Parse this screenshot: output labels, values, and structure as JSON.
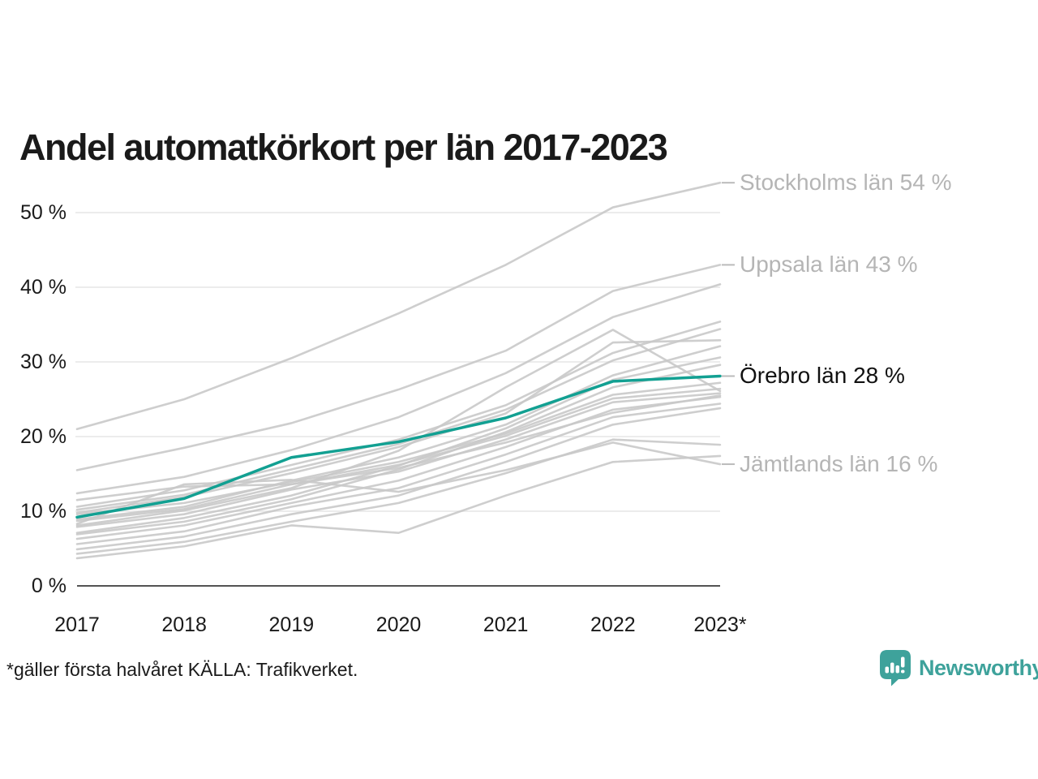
{
  "title": "Andel automatkörkort per län 2017-2023",
  "footnote": "*gäller första halvåret KÄLLA: Trafikverket.",
  "logo": {
    "text": "Newsworthy",
    "color": "#3ea29b"
  },
  "colors": {
    "highlight_line": "#12a092",
    "gray_line": "#c9c9c9",
    "gridline": "#ececec",
    "axis_line": "#1a1a1a",
    "end_label_gray": "#b5b5b5",
    "end_label_dark": "#111111"
  },
  "chart_data": {
    "type": "line",
    "x_tick_labels": [
      "2017",
      "2018",
      "2019",
      "2020",
      "2021",
      "2022",
      "2023*"
    ],
    "y_ticks": [
      0,
      10,
      20,
      30,
      40,
      50
    ],
    "y_tick_labels": [
      "0 %",
      "10 %",
      "20 %",
      "30 %",
      "40 %",
      "50 %"
    ],
    "ylim": [
      0,
      57.5
    ],
    "grid": "horizontal-only",
    "legend_position": "right-end-labels",
    "series": [
      {
        "name": "Stockholms län",
        "end_label": "Stockholms län 54 %",
        "emphasis": false,
        "values": [
          21,
          25,
          30.5,
          36.5,
          43,
          50.7,
          54
        ]
      },
      {
        "name": "Uppsala län",
        "end_label": "Uppsala län 43 %",
        "emphasis": false,
        "values": [
          15.5,
          18.5,
          21.8,
          26.3,
          31.5,
          39.5,
          43
        ]
      },
      {
        "name": "Örebro län",
        "end_label": "Örebro län 28 %",
        "emphasis": true,
        "values": [
          9.2,
          11.7,
          17.2,
          19.3,
          22.5,
          27.4,
          28.1
        ]
      },
      {
        "name": "Jämtlands län",
        "end_label": "Jämtlands län 16 %",
        "emphasis": false,
        "values": [
          8.3,
          13.6,
          14.2,
          12.6,
          15.5,
          19.2,
          16.3
        ]
      },
      {
        "name": "",
        "values": [
          12.4,
          14.6,
          18.2,
          22.6,
          28.5,
          36,
          40.4
        ]
      },
      {
        "name": "",
        "values": [
          10.6,
          12.8,
          16.2,
          19.6,
          24.2,
          31.2,
          35.4
        ]
      },
      {
        "name": "",
        "values": [
          10.2,
          12.2,
          15.6,
          19,
          23.6,
          30.2,
          34.4
        ]
      },
      {
        "name": "",
        "values": [
          9.8,
          11.9,
          15.1,
          18.6,
          23.1,
          32.6,
          32.9
        ]
      },
      {
        "name": "",
        "values": [
          8.9,
          10.6,
          14.1,
          17.2,
          21.6,
          28.2,
          32.1
        ]
      },
      {
        "name": "",
        "values": [
          7.1,
          9.1,
          12.1,
          16.1,
          21.1,
          27.6,
          30.6
        ]
      },
      {
        "name": "",
        "values": [
          6.9,
          8.6,
          11.6,
          15.6,
          20.6,
          26.6,
          29.6
        ]
      },
      {
        "name": "",
        "values": [
          8.1,
          10.1,
          13.1,
          18.1,
          26.6,
          34.3,
          26.1
        ]
      },
      {
        "name": "",
        "values": [
          9.6,
          11.1,
          13.9,
          16.6,
          20.4,
          25.6,
          27.2
        ]
      },
      {
        "name": "",
        "values": [
          8.7,
          10.3,
          13.6,
          16.2,
          20.1,
          25.1,
          26.4
        ]
      },
      {
        "name": "",
        "values": [
          7.9,
          9.6,
          12.9,
          15.3,
          19.6,
          24.6,
          25.8
        ]
      },
      {
        "name": "",
        "values": [
          11.5,
          13.3,
          13.6,
          15.8,
          19.2,
          23.2,
          25.5
        ]
      },
      {
        "name": "",
        "values": [
          6.3,
          8.1,
          11.1,
          14.1,
          18.6,
          23.6,
          25.3
        ]
      },
      {
        "name": "",
        "values": [
          5.6,
          7.3,
          10.6,
          13.1,
          17.6,
          22.6,
          24.4
        ]
      },
      {
        "name": "",
        "values": [
          4.9,
          6.6,
          9.6,
          12.1,
          16.6,
          21.6,
          23.8
        ]
      },
      {
        "name": "",
        "values": [
          4.3,
          5.9,
          8.6,
          11.1,
          15.1,
          19.6,
          18.9
        ]
      },
      {
        "name": "",
        "values": [
          3.7,
          5.3,
          8.1,
          7.1,
          12.1,
          16.6,
          17.4
        ]
      }
    ]
  }
}
